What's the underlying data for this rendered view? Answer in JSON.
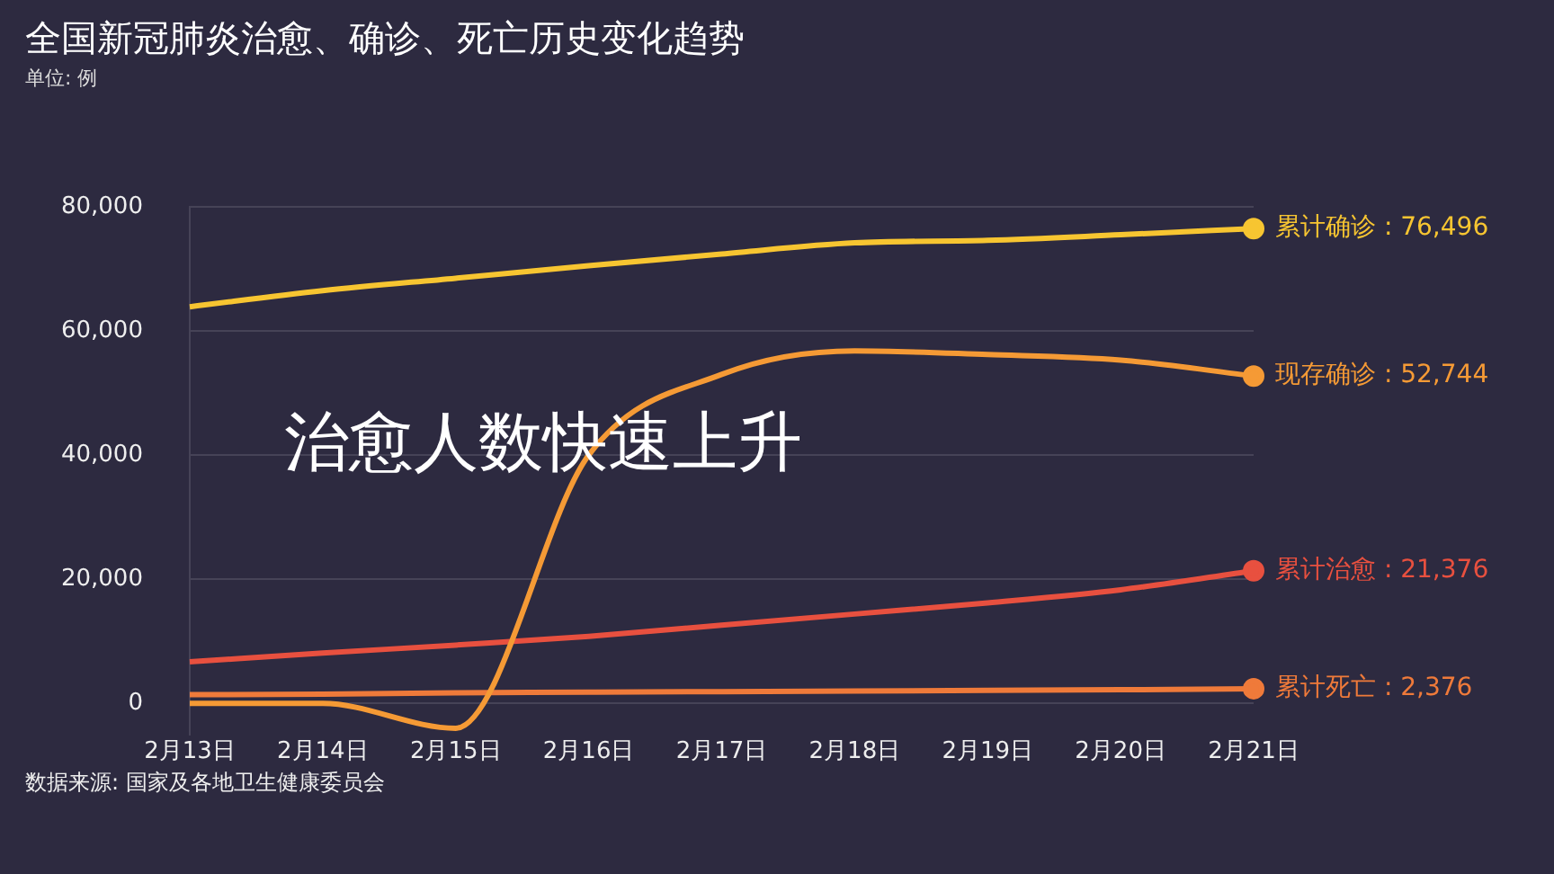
{
  "chart_data": {
    "type": "line",
    "title": "全国新冠肺炎治愈、确诊、死亡历史变化趋势",
    "subtitle": "单位: 例",
    "categories": [
      "2月13日",
      "2月14日",
      "2月15日",
      "2月16日",
      "2月17日",
      "2月18日",
      "2月19日",
      "2月20日",
      "2月21日"
    ],
    "series": [
      {
        "name": "累计确诊 :",
        "color": "#f7c531",
        "values": [
          63900,
          66500,
          68500,
          70500,
          72400,
          74200,
          74600,
          75500,
          76496
        ],
        "value_labels": [
          null,
          null,
          null,
          null,
          null,
          null,
          null,
          null,
          "76,496"
        ]
      },
      {
        "name": "现存确诊 :",
        "color": "#f59a35",
        "values": [
          0,
          0,
          -4000,
          40000,
          53000,
          56800,
          56200,
          55300,
          52744
        ],
        "value_labels": [
          null,
          null,
          null,
          null,
          null,
          null,
          null,
          null,
          "52,744"
        ]
      },
      {
        "name": "累计治愈 :",
        "color": "#e8503f",
        "values": [
          6700,
          8100,
          9400,
          10800,
          12600,
          14400,
          16200,
          18300,
          21376
        ],
        "value_labels": [
          null,
          null,
          null,
          null,
          null,
          null,
          null,
          null,
          "21,376"
        ]
      },
      {
        "name": "累计死亡 :",
        "color": "#ef7a3a",
        "values": [
          1400,
          1500,
          1700,
          1800,
          1900,
          2000,
          2100,
          2200,
          2376
        ],
        "value_labels": [
          null,
          null,
          null,
          null,
          null,
          null,
          null,
          null,
          "2,376"
        ]
      }
    ],
    "ylim": [
      -5000,
      80000
    ],
    "yticks": [
      {
        "value": 0,
        "label": "0"
      },
      {
        "value": 20000,
        "label": "20,000"
      },
      {
        "value": 40000,
        "label": "40,000"
      },
      {
        "value": 60000,
        "label": "60,000"
      },
      {
        "value": 80000,
        "label": "80,000"
      }
    ],
    "grid": "y",
    "legend": false,
    "marker": "none",
    "line_style": "solid",
    "annotations": [
      "治愈人数快速上升",
      "数据来源: 国家及各地卫生健康委员会"
    ]
  }
}
